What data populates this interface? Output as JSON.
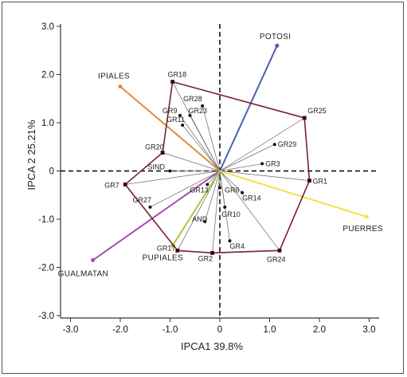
{
  "chart_data": {
    "type": "scatter",
    "title": "",
    "xlabel": "IPCA1 39.8%",
    "ylabel": "IPCA 2  25.21%",
    "xlim": [
      -3.2,
      3.2
    ],
    "ylim": [
      -3.05,
      3.05
    ],
    "xticks": [
      "-3.0",
      "-2.0",
      "-1.0",
      "0",
      "1.0",
      "2.0",
      "3.0"
    ],
    "xtick_values": [
      -3,
      -2,
      -1,
      0,
      1,
      2,
      3
    ],
    "yticks": [
      "3.0",
      "2.0",
      "1.0",
      "0",
      "-1.0",
      "-2.0",
      "-3.0"
    ],
    "ytick_values": [
      3,
      2,
      1,
      0,
      -1,
      -2,
      -3
    ],
    "reference_lines": "dashed lines at x=0 and y=0",
    "genotypes": [
      {
        "name": "GR18",
        "x": -0.95,
        "y": 1.85
      },
      {
        "name": "GR28",
        "x": -0.35,
        "y": 1.35
      },
      {
        "name": "GR9",
        "x": -0.8,
        "y": 1.15
      },
      {
        "name": "GR23",
        "x": -0.6,
        "y": 1.15
      },
      {
        "name": "GR11",
        "x": -0.75,
        "y": 0.95
      },
      {
        "name": "GR25",
        "x": 1.7,
        "y": 1.1
      },
      {
        "name": "GR29",
        "x": 1.1,
        "y": 0.55
      },
      {
        "name": "GR20",
        "x": -1.15,
        "y": 0.38
      },
      {
        "name": "GR3",
        "x": 0.85,
        "y": 0.15
      },
      {
        "name": "SIND",
        "x": -1.0,
        "y": 0.0
      },
      {
        "name": "GR1",
        "x": 1.8,
        "y": -0.2
      },
      {
        "name": "GR7",
        "x": -1.9,
        "y": -0.28
      },
      {
        "name": "GR27",
        "x": -1.4,
        "y": -0.75
      },
      {
        "name": "GR13",
        "x": -0.25,
        "y": -0.28
      },
      {
        "name": "GR6",
        "x": 0.0,
        "y": -0.35
      },
      {
        "name": "GR14",
        "x": 0.45,
        "y": -0.45
      },
      {
        "name": "GR10",
        "x": 0.1,
        "y": -0.75
      },
      {
        "name": "AND",
        "x": -0.3,
        "y": -1.05
      },
      {
        "name": "GR4",
        "x": 0.2,
        "y": -1.45
      },
      {
        "name": "GR17",
        "x": -0.85,
        "y": -1.65
      },
      {
        "name": "GR2",
        "x": -0.15,
        "y": -1.7
      },
      {
        "name": "GR24",
        "x": 1.2,
        "y": -1.65
      }
    ],
    "hull": [
      "GR18",
      "GR25",
      "GR1",
      "GR24",
      "GR2",
      "GR17",
      "GR7",
      "GR20"
    ],
    "environments": [
      {
        "name": "POTOSI",
        "x": 1.15,
        "y": 2.6,
        "color": "#4a5fb0"
      },
      {
        "name": "IPIALES",
        "x": -2.0,
        "y": 1.75,
        "color": "#e08a3c"
      },
      {
        "name": "PUERRES",
        "x": 2.95,
        "y": -0.95,
        "color": "#f2e34a"
      },
      {
        "name": "GUALMATAN",
        "x": -2.55,
        "y": -1.85,
        "color": "#a54fb3"
      },
      {
        "name": "PUPIALES",
        "x": -0.95,
        "y": -1.55,
        "color": "#a4cc3c"
      }
    ],
    "hull_color": "#7a1f2e",
    "sector_line_color": "#666666"
  }
}
